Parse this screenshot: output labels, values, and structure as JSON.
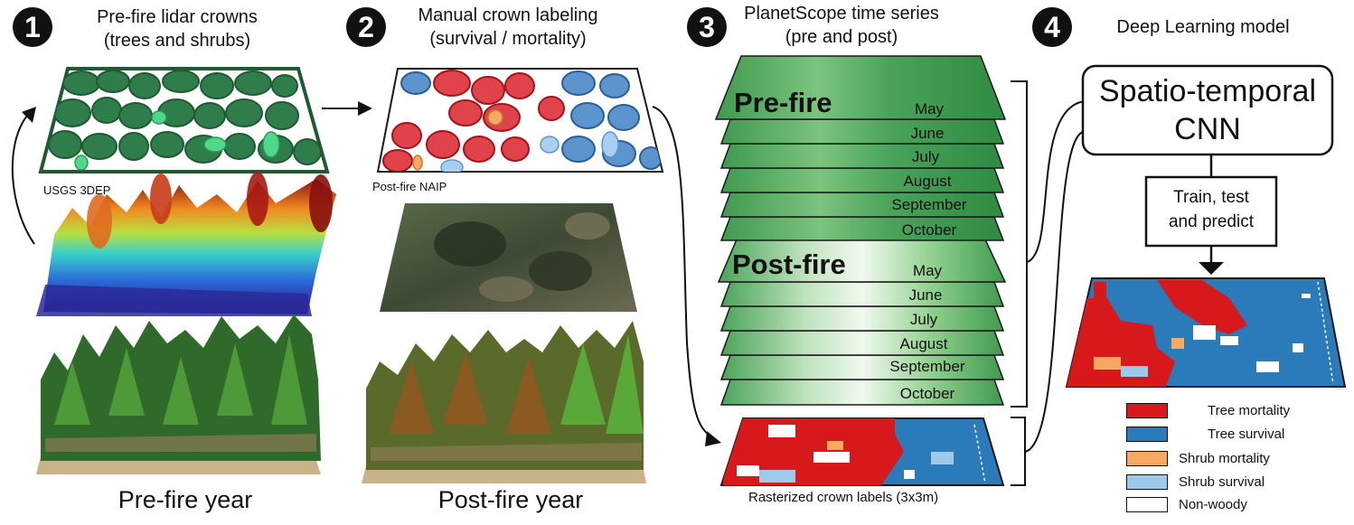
{
  "steps": [
    {
      "number": "1",
      "title_line1": "Pre-fire lidar crowns",
      "title_line2": "(trees and shrubs)"
    },
    {
      "number": "2",
      "title_line1": "Manual crown labeling",
      "title_line2": "(survival / mortality)"
    },
    {
      "number": "3",
      "title_line1": "PlanetScope time series",
      "title_line2": "(pre and post)"
    },
    {
      "number": "4",
      "title_line1": "Deep Learning model",
      "title_line2": ""
    }
  ],
  "panel1": {
    "source_label": "USGS 3DEP",
    "year_label": "Pre-fire year"
  },
  "panel2": {
    "source_label": "Post-fire NAIP",
    "year_label": "Post-fire year"
  },
  "panel3": {
    "pre_label": "Pre-fire",
    "post_label": "Post-fire",
    "months": [
      "May",
      "June",
      "July",
      "August",
      "September",
      "October"
    ],
    "raster_label": "Rasterized crown labels (3x3m)"
  },
  "panel4": {
    "model_line1": "Spatio-temporal",
    "model_line2": "CNN",
    "process_line1": "Train, test",
    "process_line2": "and predict"
  },
  "legend": [
    {
      "label": "Tree mortality",
      "color": "#d7191c"
    },
    {
      "label": "Tree survival",
      "color": "#2b7bba"
    },
    {
      "label": "Shrub mortality",
      "color": "#f6a960"
    },
    {
      "label": "Shrub survival",
      "color": "#9ecae9"
    },
    {
      "label": "Non-woody",
      "color": "#ffffff"
    }
  ],
  "icons": {
    "step_badge": "number-circle-icon",
    "arrow": "arrow-icon"
  }
}
